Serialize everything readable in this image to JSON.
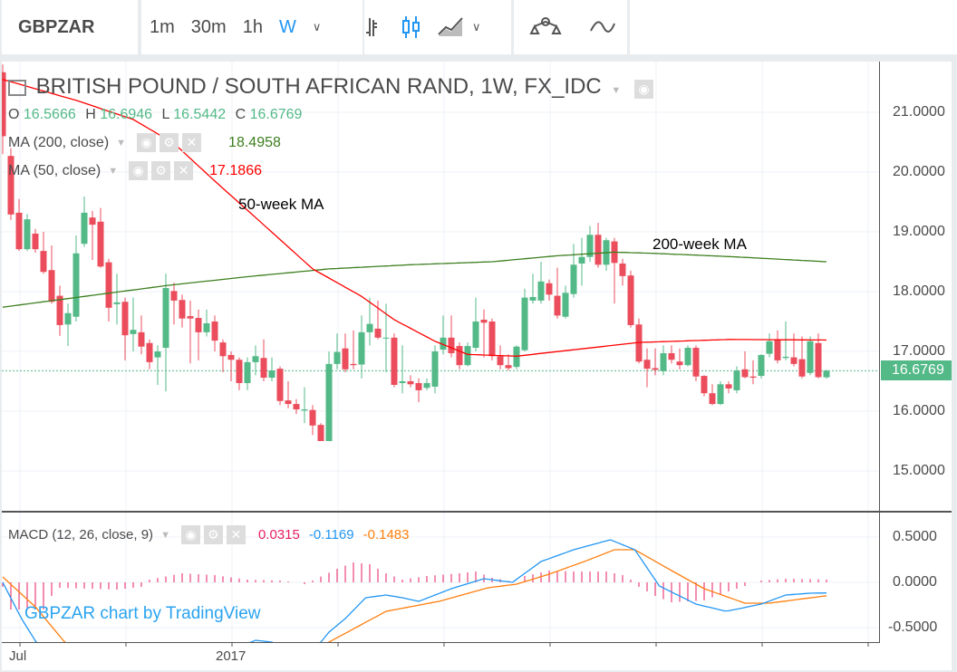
{
  "toolbar": {
    "symbol": "GBPZAR",
    "intervals": [
      "1m",
      "30m",
      "1h",
      "W"
    ],
    "active_interval": "W",
    "accent": "#2196f3"
  },
  "legend": {
    "title": "BRITISH POUND / SOUTH AFRICAN RAND, 1W, FX_IDC",
    "o_label": "O",
    "o": "16.5666",
    "h_label": "H",
    "h": "16.6946",
    "l_label": "L",
    "l": "16.5442",
    "c_label": "C",
    "c": "16.6769",
    "ma200_label": "MA (200, close)",
    "ma200_value": "18.4958",
    "ma50_label": "MA (50, close)",
    "ma50_value": "17.1866",
    "macd_label": "MACD (12, 26, close, 9)",
    "macd_hist": "0.0315",
    "macd_line": "-0.1169",
    "macd_signal": "-0.1483"
  },
  "annotations": {
    "ma50": "50-week MA",
    "ma200": "200-week MA"
  },
  "watermark": "GBPZAR chart by TradingView",
  "chart_data": {
    "type": "candlestick",
    "title": "BRITISH POUND / SOUTH AFRICAN RAND, 1W, FX_IDC",
    "colors": {
      "up": "#53b987",
      "down": "#eb4d5c",
      "ma50": "#ff0000",
      "ma200": "#3d7f1f",
      "macd": "#2196f3",
      "signal": "#ff7f0e",
      "hist": "#e91e63"
    },
    "price_axis": {
      "ticks": [
        "21.0000",
        "20.0000",
        "19.0000",
        "18.0000",
        "17.0000",
        "16.0000",
        "15.0000"
      ],
      "last_price": "16.6769"
    },
    "macd_axis": {
      "ticks": [
        "0.5000",
        "0.0000",
        "-0.5000"
      ]
    },
    "x_ticks": [
      "Jul",
      "2017"
    ],
    "candles_ohlc": [
      [
        21.67,
        21.8,
        20.3,
        20.6
      ],
      [
        20.27,
        20.4,
        19.2,
        19.29
      ],
      [
        19.32,
        19.55,
        18.68,
        18.71
      ],
      [
        18.71,
        19.3,
        18.68,
        19.21
      ],
      [
        18.97,
        19.05,
        18.65,
        18.71
      ],
      [
        18.68,
        19.0,
        18.3,
        18.33
      ],
      [
        18.36,
        18.77,
        17.8,
        17.83
      ],
      [
        17.93,
        18.1,
        17.26,
        17.44
      ],
      [
        17.45,
        17.8,
        17.09,
        17.64
      ],
      [
        17.58,
        18.94,
        17.5,
        18.64
      ],
      [
        18.8,
        19.59,
        18.75,
        19.32
      ],
      [
        19.24,
        19.35,
        18.53,
        19.12
      ],
      [
        19.17,
        19.4,
        18.4,
        18.42
      ],
      [
        18.49,
        18.55,
        17.5,
        17.73
      ],
      [
        17.79,
        18.3,
        17.45,
        17.82
      ],
      [
        17.83,
        17.9,
        16.85,
        17.27
      ],
      [
        17.29,
        17.9,
        17.0,
        17.36
      ],
      [
        17.32,
        17.6,
        16.95,
        17.08
      ],
      [
        17.14,
        17.2,
        16.7,
        16.82
      ],
      [
        16.9,
        17.1,
        16.44,
        17.0
      ],
      [
        17.06,
        18.3,
        16.33,
        18.06
      ],
      [
        18.01,
        18.15,
        17.45,
        17.85
      ],
      [
        17.86,
        17.95,
        17.4,
        17.55
      ],
      [
        17.59,
        17.85,
        16.8,
        17.55
      ],
      [
        17.56,
        17.7,
        16.85,
        17.32
      ],
      [
        17.32,
        17.7,
        17.25,
        17.47
      ],
      [
        17.5,
        17.6,
        17.0,
        17.18
      ],
      [
        17.15,
        17.2,
        16.65,
        16.92
      ],
      [
        16.94,
        17.0,
        16.5,
        16.86
      ],
      [
        16.86,
        16.9,
        16.35,
        16.47
      ],
      [
        16.47,
        16.9,
        16.35,
        16.82
      ],
      [
        16.82,
        17.1,
        16.6,
        16.92
      ],
      [
        16.89,
        17.2,
        16.5,
        16.56
      ],
      [
        16.56,
        16.9,
        16.5,
        16.68
      ],
      [
        16.71,
        16.75,
        16.1,
        16.17
      ],
      [
        16.18,
        16.5,
        16.05,
        16.12
      ],
      [
        16.12,
        16.2,
        15.95,
        16.03
      ],
      [
        16.01,
        16.4,
        15.8,
        16.03
      ],
      [
        16.02,
        16.1,
        15.6,
        15.76
      ],
      [
        15.77,
        15.8,
        15.5,
        15.5
      ],
      [
        15.5,
        17.0,
        15.5,
        16.79
      ],
      [
        16.79,
        17.3,
        16.7,
        16.99
      ],
      [
        17.05,
        17.3,
        16.65,
        16.7
      ],
      [
        16.79,
        17.35,
        16.7,
        16.77
      ],
      [
        16.78,
        17.6,
        16.55,
        17.32
      ],
      [
        17.32,
        17.9,
        17.1,
        17.46
      ],
      [
        17.38,
        17.85,
        17.2,
        17.23
      ],
      [
        17.22,
        17.8,
        16.65,
        17.23
      ],
      [
        17.23,
        17.3,
        16.4,
        16.44
      ],
      [
        16.47,
        17.1,
        16.3,
        16.5
      ],
      [
        16.5,
        16.6,
        16.4,
        16.45
      ],
      [
        16.47,
        16.55,
        16.15,
        16.35
      ],
      [
        16.39,
        16.55,
        16.35,
        16.47
      ],
      [
        16.41,
        17.1,
        16.3,
        17.0
      ],
      [
        17.03,
        17.6,
        16.95,
        17.23
      ],
      [
        17.23,
        17.6,
        16.9,
        16.97
      ],
      [
        17.09,
        17.15,
        16.7,
        16.77
      ],
      [
        16.77,
        17.15,
        16.75,
        17.09
      ],
      [
        17.06,
        17.9,
        17.0,
        17.5
      ],
      [
        17.53,
        17.7,
        16.9,
        17.48
      ],
      [
        17.5,
        17.55,
        16.85,
        16.92
      ],
      [
        16.92,
        17.1,
        16.7,
        16.77
      ],
      [
        16.77,
        16.95,
        16.68,
        16.72
      ],
      [
        16.74,
        17.1,
        16.7,
        17.08
      ],
      [
        17.02,
        18.05,
        17.0,
        17.9
      ],
      [
        17.85,
        18.3,
        17.8,
        17.91
      ],
      [
        17.85,
        18.5,
        17.8,
        18.17
      ],
      [
        18.14,
        18.2,
        17.85,
        17.95
      ],
      [
        17.93,
        18.4,
        17.55,
        17.6
      ],
      [
        17.58,
        18.1,
        17.55,
        17.98
      ],
      [
        17.96,
        18.8,
        17.9,
        18.45
      ],
      [
        18.47,
        18.9,
        18.1,
        18.58
      ],
      [
        18.58,
        19.1,
        18.5,
        18.95
      ],
      [
        18.95,
        19.15,
        18.4,
        18.45
      ],
      [
        18.45,
        18.9,
        18.35,
        18.86
      ],
      [
        18.84,
        18.9,
        17.8,
        18.48
      ],
      [
        18.47,
        18.55,
        18.1,
        18.26
      ],
      [
        18.27,
        18.35,
        17.4,
        17.44
      ],
      [
        17.45,
        17.55,
        16.8,
        16.83
      ],
      [
        16.86,
        17.05,
        16.4,
        16.71
      ],
      [
        16.72,
        17.05,
        16.6,
        16.69
      ],
      [
        16.67,
        17.1,
        16.6,
        16.97
      ],
      [
        16.97,
        17.1,
        16.8,
        16.86
      ],
      [
        16.83,
        17.05,
        16.7,
        16.77
      ],
      [
        16.77,
        17.1,
        16.75,
        17.06
      ],
      [
        17.06,
        17.1,
        16.5,
        16.58
      ],
      [
        16.59,
        16.6,
        16.25,
        16.3
      ],
      [
        16.3,
        16.45,
        16.1,
        16.12
      ],
      [
        16.12,
        16.5,
        16.1,
        16.45
      ],
      [
        16.45,
        16.5,
        16.3,
        16.38
      ],
      [
        16.35,
        16.75,
        16.3,
        16.68
      ],
      [
        16.7,
        17.0,
        16.55,
        16.57
      ],
      [
        16.58,
        16.85,
        16.45,
        16.56
      ],
      [
        16.59,
        16.95,
        16.55,
        16.94
      ],
      [
        16.96,
        17.3,
        16.9,
        17.17
      ],
      [
        17.2,
        17.35,
        16.8,
        16.85
      ],
      [
        16.89,
        17.5,
        16.85,
        16.91
      ],
      [
        16.9,
        17.3,
        16.75,
        16.79
      ],
      [
        16.87,
        17.25,
        16.55,
        16.58
      ],
      [
        16.64,
        17.25,
        16.6,
        17.17
      ],
      [
        17.14,
        17.3,
        16.55,
        16.57
      ],
      [
        16.5666,
        16.6946,
        16.5442,
        16.6769
      ]
    ],
    "ma50_points": [
      [
        0,
        21.55
      ],
      [
        9,
        21.2
      ],
      [
        16,
        20.88
      ],
      [
        21,
        20.48
      ],
      [
        26,
        19.85
      ],
      [
        31,
        19.24
      ],
      [
        38,
        18.38
      ],
      [
        44,
        17.92
      ],
      [
        48,
        17.53
      ],
      [
        53,
        17.17
      ],
      [
        57,
        16.95
      ],
      [
        63,
        16.92
      ],
      [
        78,
        17.15
      ],
      [
        89,
        17.2
      ],
      [
        101,
        17.19
      ]
    ],
    "ma200_points": [
      [
        0,
        17.74
      ],
      [
        10,
        17.92
      ],
      [
        20,
        18.1
      ],
      [
        30,
        18.25
      ],
      [
        40,
        18.38
      ],
      [
        50,
        18.45
      ],
      [
        60,
        18.5
      ],
      [
        68,
        18.6
      ],
      [
        75,
        18.66
      ],
      [
        80,
        18.64
      ],
      [
        90,
        18.58
      ],
      [
        101,
        18.5
      ]
    ],
    "macd_points": [
      [
        0,
        0
      ],
      [
        2.3,
        -0.4
      ],
      [
        4.1,
        -0.66
      ],
      [
        6,
        -0.85
      ],
      [
        15,
        -1.0
      ],
      [
        25,
        -0.85
      ],
      [
        31,
        -0.64
      ],
      [
        33,
        -0.66
      ],
      [
        36,
        -0.8
      ],
      [
        39,
        -0.66
      ],
      [
        40,
        -0.55
      ],
      [
        42,
        -0.4
      ],
      [
        44.5,
        -0.17
      ],
      [
        47,
        -0.14
      ],
      [
        49,
        -0.17
      ],
      [
        51,
        -0.21
      ],
      [
        55,
        -0.07
      ],
      [
        59,
        0.04
      ],
      [
        62.5,
        0
      ],
      [
        66,
        0.23
      ],
      [
        70,
        0.36
      ],
      [
        74.5,
        0.47
      ],
      [
        77.5,
        0.36
      ],
      [
        80.5,
        -0.04
      ],
      [
        85,
        -0.24
      ],
      [
        88.7,
        -0.32
      ],
      [
        93,
        -0.24
      ],
      [
        96,
        -0.14
      ],
      [
        99,
        -0.12
      ],
      [
        101,
        -0.1169
      ]
    ],
    "signal_points": [
      [
        0,
        0.06
      ],
      [
        4,
        -0.27
      ],
      [
        7.6,
        -0.66
      ],
      [
        12,
        -1.0
      ],
      [
        25,
        -1.05
      ],
      [
        35,
        -0.85
      ],
      [
        40,
        -0.66
      ],
      [
        47,
        -0.32
      ],
      [
        53.5,
        -0.21
      ],
      [
        59.5,
        -0.06
      ],
      [
        63,
        -0.02
      ],
      [
        67,
        0.09
      ],
      [
        71.6,
        0.24
      ],
      [
        75,
        0.36
      ],
      [
        77.5,
        0.36
      ],
      [
        82,
        0.13
      ],
      [
        86,
        -0.07
      ],
      [
        91,
        -0.23
      ],
      [
        94,
        -0.23
      ],
      [
        101,
        -0.1483
      ]
    ],
    "hist_points": [
      [
        0,
        -0.05
      ],
      [
        1,
        -0.3
      ],
      [
        5,
        -0.3
      ],
      [
        6,
        -0.15
      ],
      [
        7,
        -0.06
      ],
      [
        14,
        -0.08
      ],
      [
        17,
        -0.05
      ],
      [
        18,
        0.03
      ],
      [
        22,
        0.1
      ],
      [
        26,
        0.08
      ],
      [
        30,
        0.03
      ],
      [
        34,
        0.02
      ],
      [
        36,
        0
      ],
      [
        37,
        -0.02
      ],
      [
        38,
        0.02
      ],
      [
        41,
        0.15
      ],
      [
        43,
        0.22
      ],
      [
        45,
        0.2
      ],
      [
        47,
        0.1
      ],
      [
        49,
        0.03
      ],
      [
        52,
        0.07
      ],
      [
        56,
        0.1
      ],
      [
        58,
        0.12
      ],
      [
        60,
        0.05
      ],
      [
        63,
        0
      ],
      [
        64,
        0.07
      ],
      [
        67,
        0.13
      ],
      [
        70,
        0.12
      ],
      [
        74,
        0.12
      ],
      [
        76,
        0.08
      ],
      [
        77,
        0.03
      ],
      [
        78,
        -0.05
      ],
      [
        80,
        -0.15
      ],
      [
        82,
        -0.22
      ],
      [
        86,
        -0.2
      ],
      [
        89,
        -0.1
      ],
      [
        91,
        -0.04
      ],
      [
        92,
        0
      ],
      [
        93,
        0.02
      ],
      [
        96,
        0.04
      ],
      [
        101,
        0.0315
      ]
    ]
  }
}
